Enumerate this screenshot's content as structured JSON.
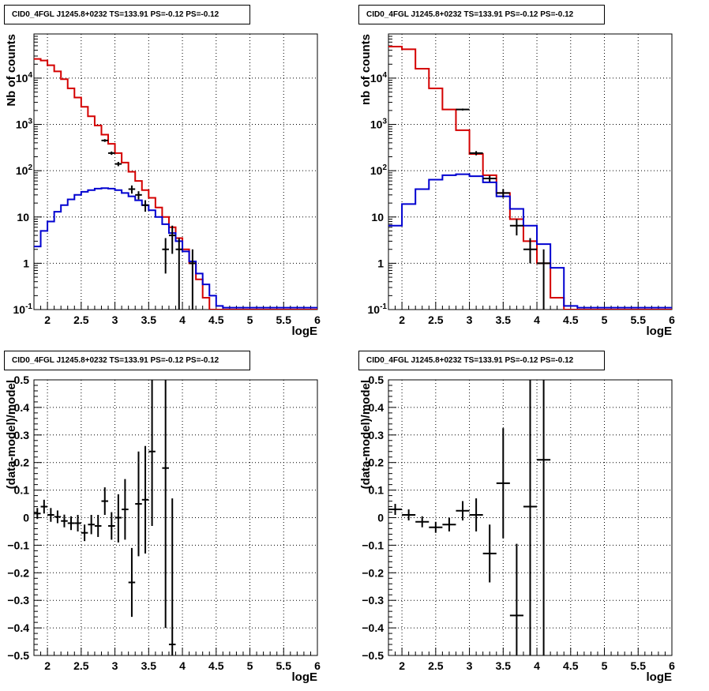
{
  "chart_data": [
    {
      "type": "histogram",
      "title": "CID0_4FGL J1245.8+0232 TS=133.91 PS=-0.12 PS=-0.12",
      "xlabel": "logE",
      "ylabel": "Nb of counts",
      "xlim": [
        1.8,
        6
      ],
      "ylim": [
        0.1,
        90000
      ],
      "yscale": "log",
      "grid": true,
      "x_ticks": [
        2,
        2.5,
        3,
        3.5,
        4,
        4.5,
        5,
        5.5,
        6
      ],
      "y_ticks": [
        0.1,
        1,
        10,
        100,
        1000,
        10000
      ],
      "y_tick_labels": [
        "10^-1",
        "1",
        "10",
        "10^2",
        "10^3",
        "10^4"
      ],
      "bin_edges": [
        1.8,
        1.9,
        2.0,
        2.1,
        2.2,
        2.3,
        2.4,
        2.5,
        2.6,
        2.7,
        2.8,
        2.9,
        3.0,
        3.1,
        3.2,
        3.3,
        3.4,
        3.5,
        3.6,
        3.7,
        3.8,
        3.9,
        4.0,
        4.1,
        4.2,
        4.3,
        4.4,
        4.5,
        4.6,
        4.7,
        4.8,
        4.9,
        5.0,
        5.1,
        5.2,
        5.3,
        5.4,
        5.5,
        5.6,
        5.7,
        5.8,
        5.9,
        6.0
      ],
      "series": [
        {
          "color": "#d40000",
          "values": [
            26000,
            24000,
            19000,
            14000,
            9500,
            6000,
            3800,
            2400,
            1500,
            950,
            600,
            380,
            240,
            150,
            95,
            60,
            38,
            26,
            16,
            10,
            6,
            3.5,
            2,
            1,
            0.45,
            0.18,
            0.08,
            0.06,
            0.06,
            0.06,
            0.06,
            0.06,
            0.06,
            0.06,
            0.06,
            0.06,
            0.06,
            0.06,
            0.06,
            0.06,
            0.06,
            0.06
          ]
        },
        {
          "color": "#0000d0",
          "values": [
            2.3,
            5,
            8,
            13,
            18,
            24,
            30,
            35,
            38,
            41,
            42,
            41,
            38,
            33,
            28,
            23,
            18,
            14,
            10,
            7,
            4.5,
            3,
            1.8,
            1.1,
            0.6,
            0.35,
            0.2,
            0.12,
            0.11,
            0.11,
            0.11,
            0.11,
            0.11,
            0.11,
            0.11,
            0.11,
            0.11,
            0.11,
            0.11,
            0.11,
            0.11,
            0.11
          ]
        },
        {
          "color": "#000000",
          "style": "points",
          "x": [
            2.85,
            2.95,
            3.05,
            3.25,
            3.35,
            3.45,
            3.75,
            3.85,
            3.95,
            4.15
          ],
          "y": [
            450,
            240,
            140,
            40,
            30,
            18,
            2,
            4,
            2,
            1
          ],
          "ylo": [
            420,
            220,
            125,
            32,
            24,
            13,
            0.6,
            1.6,
            0.1,
            0.1
          ],
          "yhi": [
            480,
            260,
            155,
            48,
            36,
            23,
            3.5,
            6.5,
            3.5,
            2
          ],
          "xerr": 0.05
        }
      ]
    },
    {
      "type": "histogram",
      "title": "CID0_4FGL J1245.8+0232 TS=133.91 PS=-0.12 PS=-0.12",
      "xlabel": "logE",
      "ylabel": "nb of counts",
      "xlim": [
        1.8,
        6
      ],
      "ylim": [
        0.1,
        90000
      ],
      "yscale": "log",
      "grid": true,
      "x_ticks": [
        2,
        2.5,
        3,
        3.5,
        4,
        4.5,
        5,
        5.5,
        6
      ],
      "y_ticks": [
        0.1,
        1,
        10,
        100,
        1000,
        10000
      ],
      "y_tick_labels": [
        "10^-1",
        "1",
        "10",
        "10^2",
        "10^3",
        "10^4"
      ],
      "bin_edges": [
        1.8,
        2.0,
        2.2,
        2.4,
        2.6,
        2.8,
        3.0,
        3.2,
        3.4,
        3.6,
        3.8,
        4.0,
        4.2,
        4.4,
        4.6,
        4.8,
        5.0,
        5.2,
        5.4,
        5.6,
        5.8,
        6.0
      ],
      "series": [
        {
          "color": "#d40000",
          "values": [
            48000,
            42000,
            16000,
            6000,
            2100,
            750,
            230,
            80,
            33,
            9,
            3,
            1,
            0.18,
            0.06,
            0.06,
            0.06,
            0.06,
            0.06,
            0.06,
            0.06,
            0.06
          ]
        },
        {
          "color": "#0000d0",
          "values": [
            6.5,
            19,
            40,
            64,
            80,
            84,
            76,
            56,
            28,
            15,
            6.5,
            2.6,
            0.8,
            0.12,
            0.11,
            0.11,
            0.11,
            0.11,
            0.11,
            0.11,
            0.11
          ]
        },
        {
          "color": "#000000",
          "style": "points",
          "x": [
            2.9,
            3.1,
            3.3,
            3.5,
            3.7,
            3.9,
            4.1
          ],
          "y": [
            2100,
            240,
            68,
            33,
            6.5,
            2,
            1
          ],
          "ylo": [
            2000,
            215,
            58,
            26,
            4,
            1,
            0.1
          ],
          "yhi": [
            2200,
            265,
            78,
            40,
            9,
            3.5,
            2
          ],
          "xerr": 0.1
        }
      ]
    },
    {
      "type": "scatter",
      "title": "CID0_4FGL J1245.8+0232 TS=133.91 PS=-0.12 PS=-0.12",
      "xlabel": "logE",
      "ylabel": "(data-model)/model",
      "xlim": [
        1.8,
        6
      ],
      "ylim": [
        -0.5,
        0.5
      ],
      "grid": true,
      "x_ticks": [
        2,
        2.5,
        3,
        3.5,
        4,
        4.5,
        5,
        5.5,
        6
      ],
      "y_ticks": [
        -0.5,
        -0.4,
        -0.3,
        -0.2,
        -0.1,
        0,
        0.1,
        0.2,
        0.3,
        0.4,
        0.5
      ],
      "y_tick_labels": [
        "−0.5",
        "−0.4",
        "−0.3",
        "−0.2",
        "−0.1",
        "0",
        "0.1",
        "0.2",
        "0.3",
        "0.4",
        "0.5"
      ],
      "series": [
        {
          "color": "#000000",
          "style": "points",
          "x": [
            1.85,
            1.95,
            2.05,
            2.15,
            2.25,
            2.35,
            2.45,
            2.55,
            2.65,
            2.75,
            2.85,
            2.95,
            3.05,
            3.15,
            3.25,
            3.35,
            3.45,
            3.55,
            3.75,
            3.85
          ],
          "y": [
            0.015,
            0.04,
            0.01,
            0.003,
            -0.012,
            -0.02,
            -0.02,
            -0.055,
            -0.025,
            -0.03,
            0.06,
            -0.03,
            0.0,
            0.03,
            -0.235,
            0.05,
            0.065,
            0.24,
            0.18,
            -0.46
          ],
          "ylo": [
            -0.005,
            0.015,
            -0.015,
            -0.02,
            -0.035,
            -0.045,
            -0.05,
            -0.085,
            -0.06,
            -0.07,
            0.01,
            -0.08,
            -0.09,
            -0.08,
            -0.36,
            -0.14,
            -0.13,
            -0.03,
            -0.4,
            -0.5
          ],
          "yhi": [
            0.035,
            0.065,
            0.035,
            0.026,
            0.011,
            0.005,
            0.01,
            -0.025,
            0.01,
            0.01,
            0.11,
            0.02,
            0.085,
            0.14,
            -0.11,
            0.24,
            0.26,
            0.5,
            0.5,
            0.07
          ],
          "xerr": 0.05
        }
      ]
    },
    {
      "type": "scatter",
      "title": "CID0_4FGL J1245.8+0232 TS=133.91 PS=-0.12 PS=-0.12",
      "xlabel": "logE",
      "ylabel": "(data-model)/model",
      "xlim": [
        1.8,
        6
      ],
      "ylim": [
        -0.5,
        0.5
      ],
      "grid": true,
      "x_ticks": [
        2,
        2.5,
        3,
        3.5,
        4,
        4.5,
        5,
        5.5,
        6
      ],
      "y_ticks": [
        -0.5,
        -0.4,
        -0.3,
        -0.2,
        -0.1,
        0,
        0.1,
        0.2,
        0.3,
        0.4,
        0.5
      ],
      "y_tick_labels": [
        "−0.5",
        "−0.4",
        "−0.3",
        "−0.2",
        "−0.1",
        "0",
        "0.1",
        "0.2",
        "0.3",
        "0.4",
        "0.5"
      ],
      "series": [
        {
          "color": "#000000",
          "style": "points",
          "x": [
            1.9,
            2.1,
            2.3,
            2.5,
            2.7,
            2.9,
            3.1,
            3.3,
            3.5,
            3.7,
            3.9,
            4.1
          ],
          "y": [
            0.03,
            0.01,
            -0.015,
            -0.035,
            -0.025,
            0.025,
            0.01,
            -0.13,
            0.125,
            -0.355,
            0.04,
            0.21
          ],
          "ylo": [
            0.01,
            -0.01,
            -0.035,
            -0.055,
            -0.05,
            -0.01,
            -0.05,
            -0.235,
            -0.075,
            -0.5,
            -0.5,
            -0.5
          ],
          "yhi": [
            0.05,
            0.03,
            0.005,
            -0.015,
            0.0,
            0.06,
            0.07,
            -0.025,
            0.325,
            -0.095,
            0.5,
            0.5
          ],
          "xerr": 0.1
        }
      ]
    }
  ]
}
